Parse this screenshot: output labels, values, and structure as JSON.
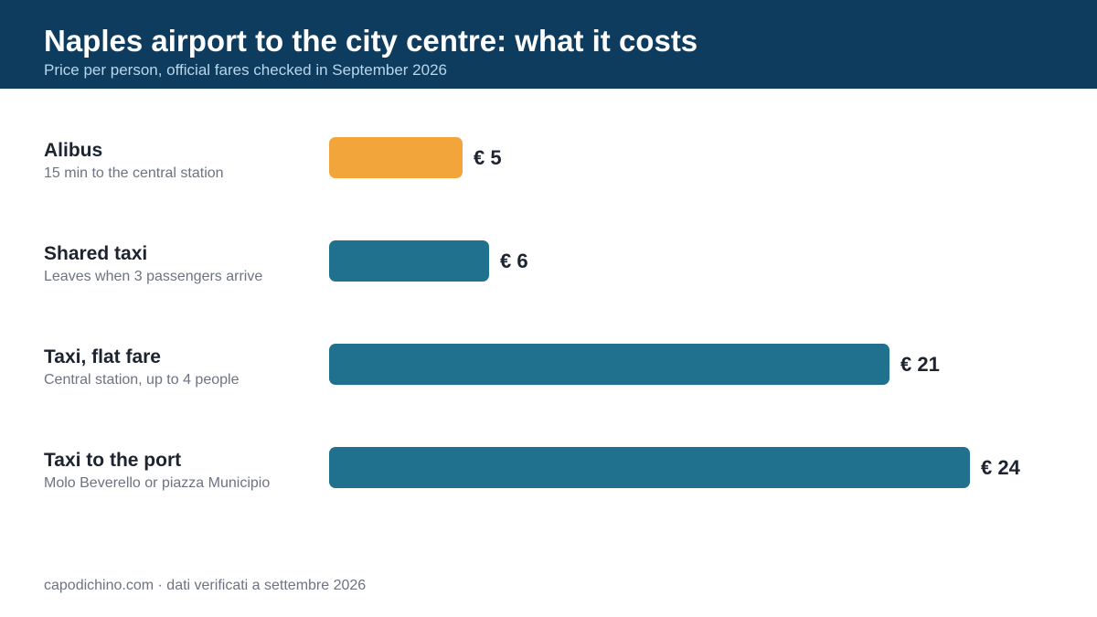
{
  "header": {
    "title": "Naples airport to the city centre: what it costs",
    "subtitle": "Price per person, official fares checked in September 2026"
  },
  "footer": {
    "source": "capodichino.com · dati verificati a settembre 2026"
  },
  "colors": {
    "header_bg": "#0e3c5e",
    "highlight": "#f2a53a",
    "bar": "#20718d"
  },
  "chart_data": {
    "type": "bar",
    "orientation": "horizontal",
    "categories": [
      "Alibus",
      "Shared taxi",
      "Taxi, flat fare",
      "Taxi to the port"
    ],
    "descriptions": [
      "15 min to the central station",
      "Leaves when 3 passengers arrive",
      "Central station, up to 4 people",
      "Molo Beverello or piazza Municipio"
    ],
    "values": [
      5,
      6,
      21,
      24
    ],
    "value_labels": [
      "€ 5",
      "€ 6",
      "€ 21",
      "€ 24"
    ],
    "unit": "€",
    "highlighted_index": 0,
    "title": "Naples airport to the city centre: what it costs",
    "subtitle": "Price per person, official fares checked in September 2026",
    "xlabel": "",
    "ylabel": "",
    "grid": false,
    "legend": "none"
  }
}
